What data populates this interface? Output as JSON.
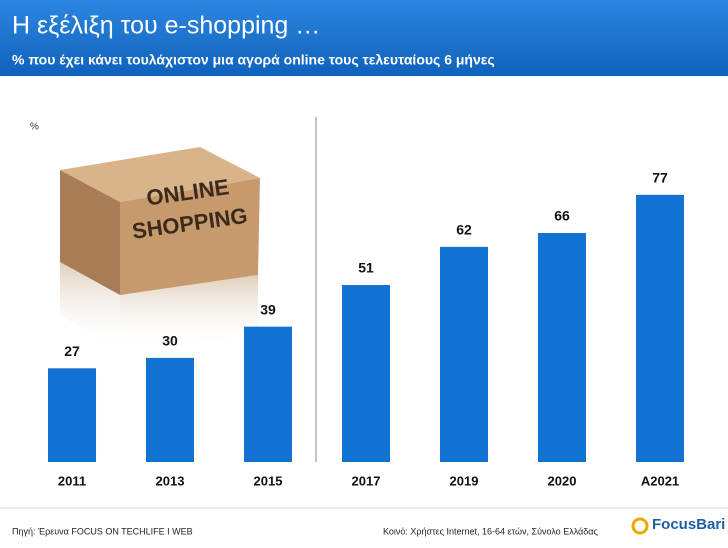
{
  "header": {
    "title": "Η εξέλιξη του e-shopping …",
    "subtitle": "% που έχει κάνει τουλάχιστον μια αγορά  online τους τελευταίους 6 μήνες"
  },
  "chart_data": {
    "type": "bar",
    "y_label": "%",
    "categories": [
      "2011",
      "2013",
      "2015",
      "2017",
      "2019",
      "2020",
      "A2021"
    ],
    "values": [
      27,
      30,
      39,
      51,
      62,
      66,
      77
    ],
    "color": "#1272d2",
    "ylim": [
      0,
      100
    ],
    "grid": false
  },
  "image": {
    "line1": "ONLINE",
    "line2": "SHOPPING"
  },
  "footer": {
    "source": "Πηγή: Έρευνα FOCUS ON TECHLIFE I WEB",
    "audience": "Κοινό: Χρήστες Internet, 16-64 ετών, Σύνολο Ελλάδας",
    "logo": "FocusBari"
  }
}
